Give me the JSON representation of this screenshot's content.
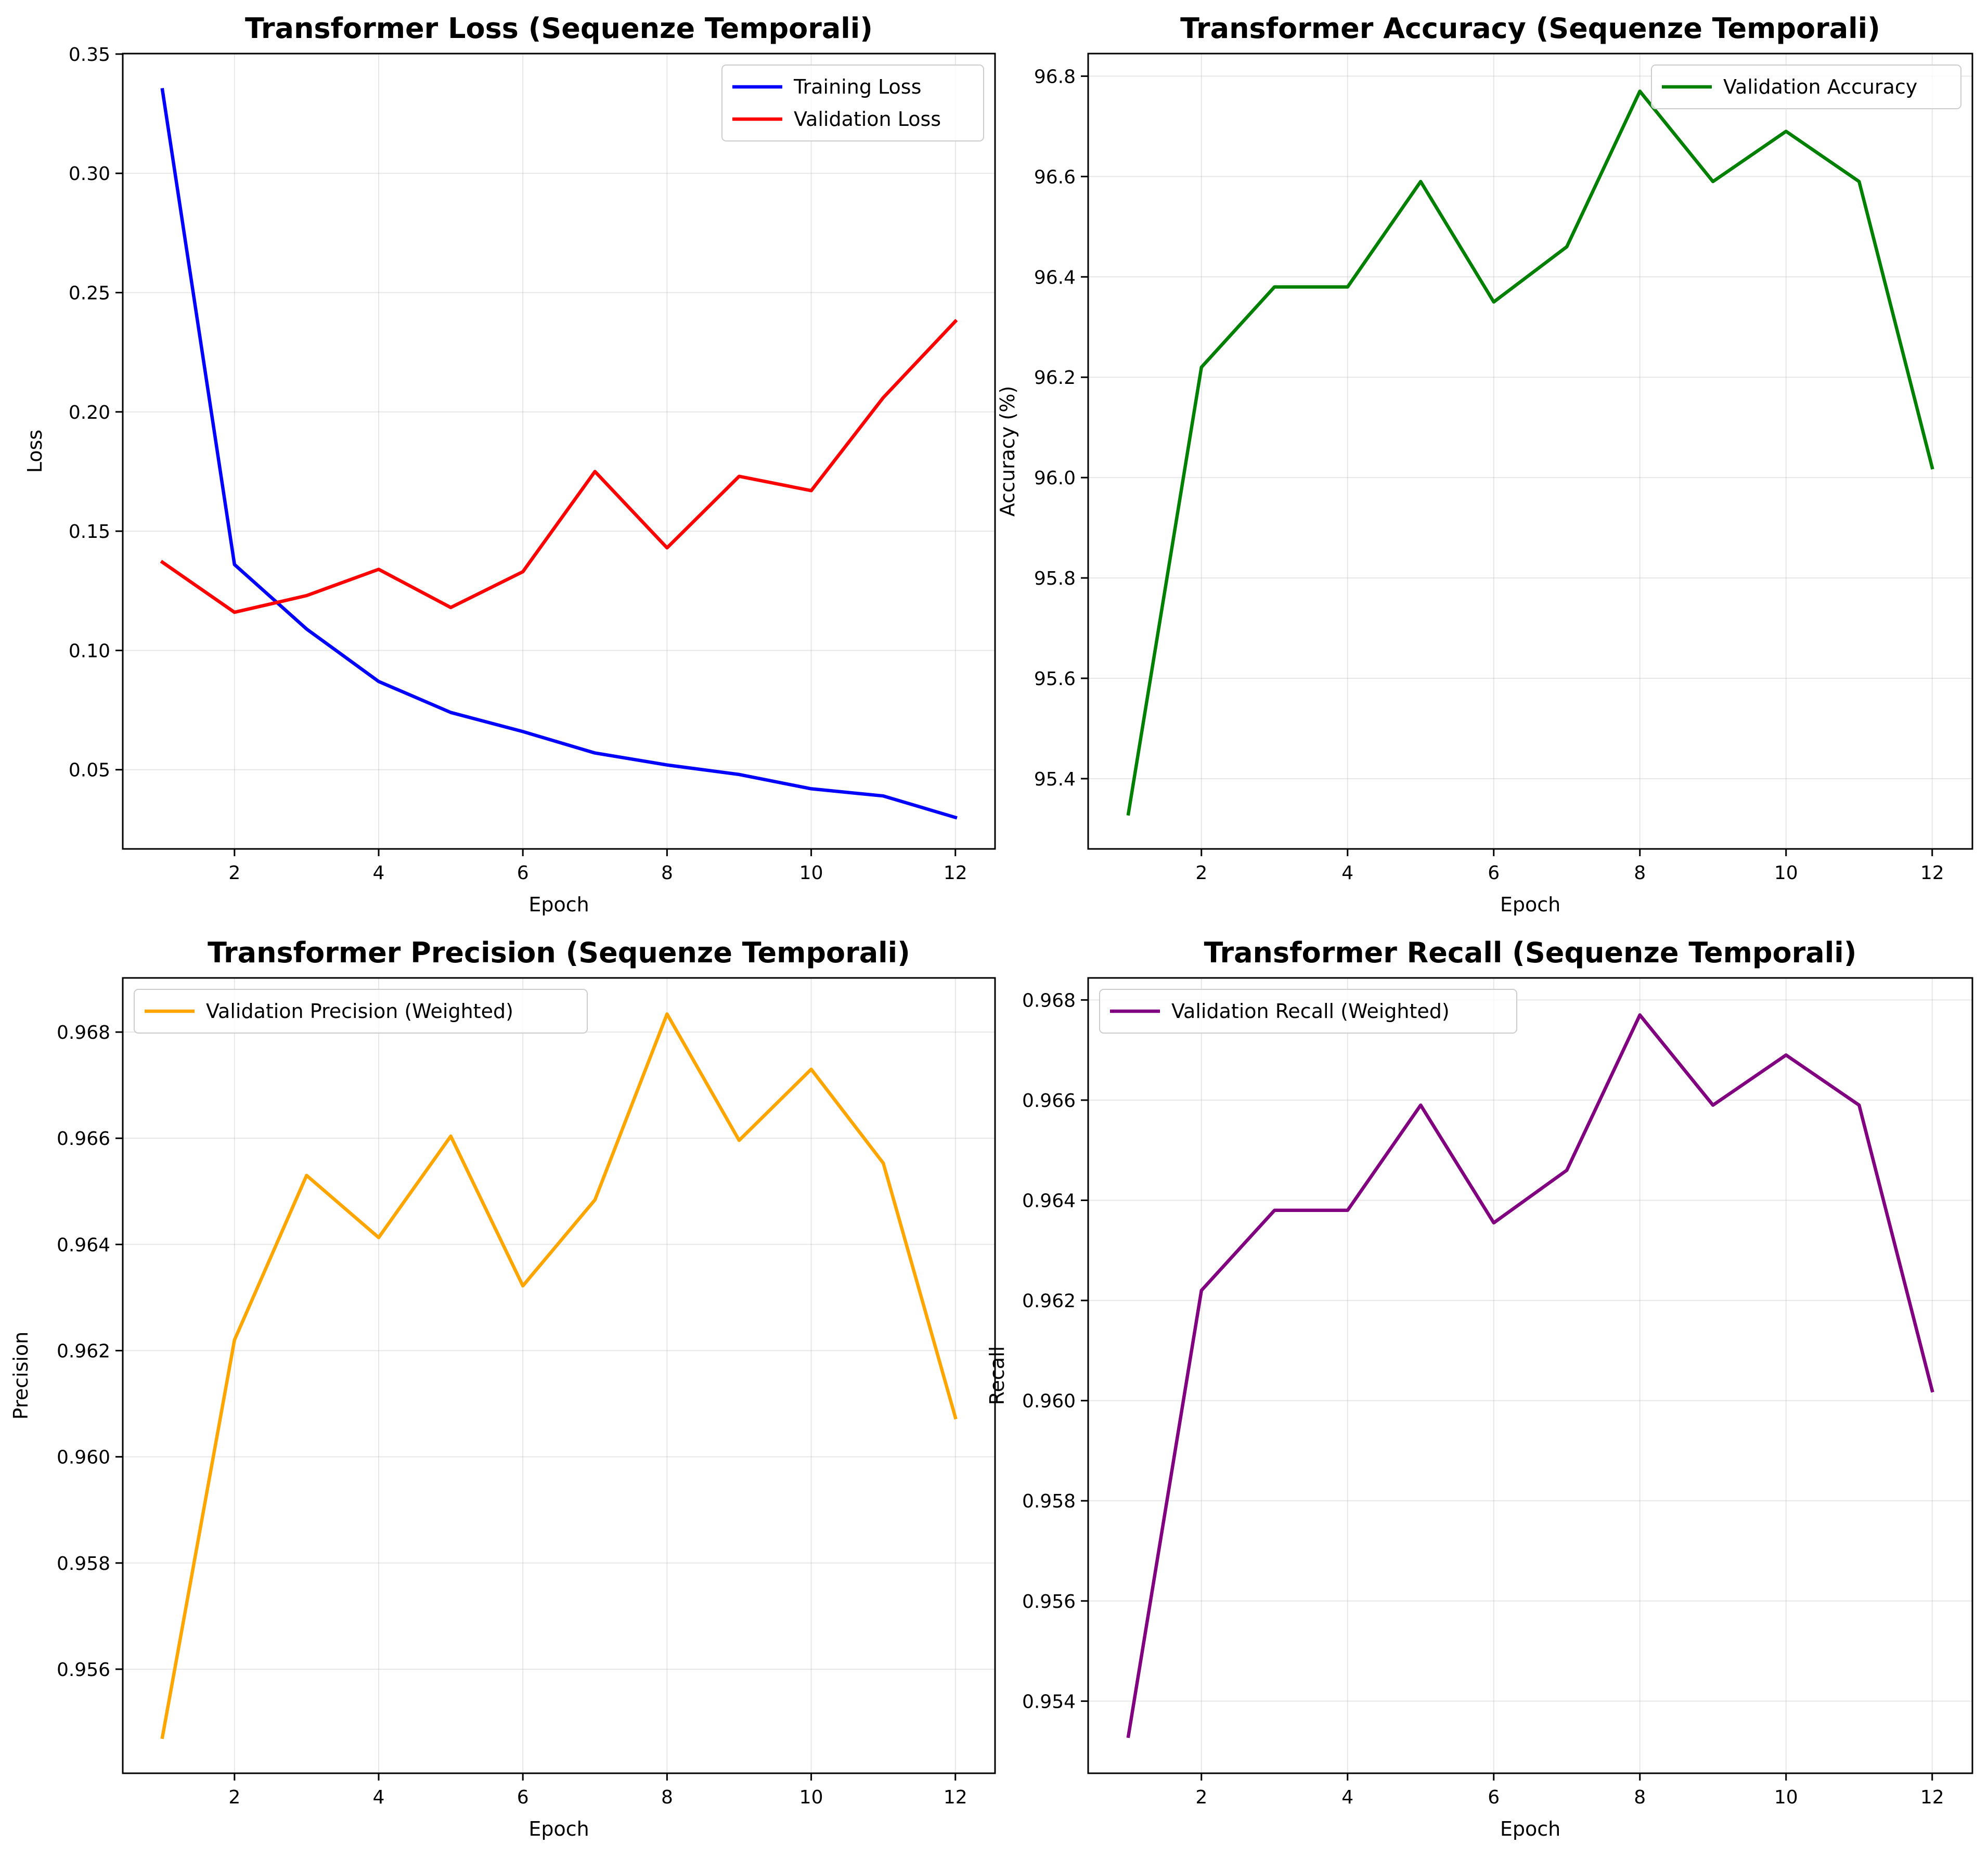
{
  "chart_data": [
    {
      "type": "line",
      "title": "Transformer Loss (Sequenze Temporali)",
      "xlabel": "Epoch",
      "ylabel": "Loss",
      "x": [
        1,
        2,
        3,
        4,
        5,
        6,
        7,
        8,
        9,
        10,
        11,
        12
      ],
      "xlim": [
        0.45,
        12.55
      ],
      "ylim": [
        0.0168,
        0.3502
      ],
      "xticks": [
        2,
        4,
        6,
        8,
        10,
        12
      ],
      "yticks": [
        0.05,
        0.1,
        0.15,
        0.2,
        0.25,
        0.3,
        0.35
      ],
      "ytick_labels": [
        "0.05",
        "0.10",
        "0.15",
        "0.20",
        "0.25",
        "0.30",
        "0.35"
      ],
      "grid": true,
      "legend_position": "upper right",
      "series": [
        {
          "name": "Training Loss",
          "color": "#0000ff",
          "values": [
            0.335,
            0.136,
            0.109,
            0.087,
            0.074,
            0.066,
            0.057,
            0.052,
            0.048,
            0.042,
            0.039,
            0.03
          ]
        },
        {
          "name": "Validation Loss",
          "color": "#ff0000",
          "values": [
            0.137,
            0.116,
            0.123,
            0.134,
            0.118,
            0.133,
            0.175,
            0.143,
            0.173,
            0.167,
            0.206,
            0.238
          ]
        }
      ]
    },
    {
      "type": "line",
      "title": "Transformer Accuracy (Sequenze Temporali)",
      "xlabel": "Epoch",
      "ylabel": "Accuracy (%)",
      "x": [
        1,
        2,
        3,
        4,
        5,
        6,
        7,
        8,
        9,
        10,
        11,
        12
      ],
      "xlim": [
        0.45,
        12.55
      ],
      "ylim": [
        95.26,
        96.845
      ],
      "xticks": [
        2,
        4,
        6,
        8,
        10,
        12
      ],
      "yticks": [
        95.4,
        95.6,
        95.8,
        96.0,
        96.2,
        96.4,
        96.6,
        96.8
      ],
      "ytick_labels": [
        "95.4",
        "95.6",
        "95.8",
        "96.0",
        "96.2",
        "96.4",
        "96.6",
        "96.8"
      ],
      "grid": true,
      "legend_position": "upper right",
      "series": [
        {
          "name": "Validation Accuracy",
          "color": "#008000",
          "values": [
            95.33,
            96.22,
            96.38,
            96.38,
            96.59,
            96.35,
            96.46,
            96.77,
            96.59,
            96.69,
            96.59,
            96.02
          ]
        }
      ]
    },
    {
      "type": "line",
      "title": "Transformer Precision (Sequenze Temporali)",
      "xlabel": "Epoch",
      "ylabel": "Precision",
      "x": [
        1,
        2,
        3,
        4,
        5,
        6,
        7,
        8,
        9,
        10,
        11,
        12
      ],
      "xlim": [
        0.45,
        12.55
      ],
      "ylim": [
        0.95404,
        0.96902
      ],
      "xticks": [
        2,
        4,
        6,
        8,
        10,
        12
      ],
      "yticks": [
        0.956,
        0.958,
        0.96,
        0.962,
        0.964,
        0.966,
        0.968
      ],
      "ytick_labels": [
        "0.956",
        "0.958",
        "0.960",
        "0.962",
        "0.964",
        "0.966",
        "0.968"
      ],
      "grid": true,
      "legend_position": "upper left",
      "series": [
        {
          "name": "Validation Precision (Weighted)",
          "color": "#ffa500",
          "values": [
            0.95472,
            0.9622,
            0.9653,
            0.96413,
            0.96604,
            0.96322,
            0.96484,
            0.96834,
            0.96596,
            0.9673,
            0.96553,
            0.96074
          ]
        }
      ]
    },
    {
      "type": "line",
      "title": "Transformer Recall (Sequenze Temporali)",
      "xlabel": "Epoch",
      "ylabel": "Recall",
      "x": [
        1,
        2,
        3,
        4,
        5,
        6,
        7,
        8,
        9,
        10,
        11,
        12
      ],
      "xlim": [
        0.45,
        12.55
      ],
      "ylim": [
        0.95256,
        0.96844
      ],
      "xticks": [
        2,
        4,
        6,
        8,
        10,
        12
      ],
      "yticks": [
        0.954,
        0.956,
        0.958,
        0.96,
        0.962,
        0.964,
        0.966,
        0.968
      ],
      "ytick_labels": [
        "0.954",
        "0.956",
        "0.958",
        "0.960",
        "0.962",
        "0.964",
        "0.966",
        "0.968"
      ],
      "grid": true,
      "legend_position": "upper left",
      "series": [
        {
          "name": "Validation Recall (Weighted)",
          "color": "#800080",
          "values": [
            0.9533,
            0.9622,
            0.9638,
            0.9638,
            0.9659,
            0.96355,
            0.9646,
            0.9677,
            0.9659,
            0.9669,
            0.9659,
            0.9602
          ]
        }
      ]
    }
  ]
}
